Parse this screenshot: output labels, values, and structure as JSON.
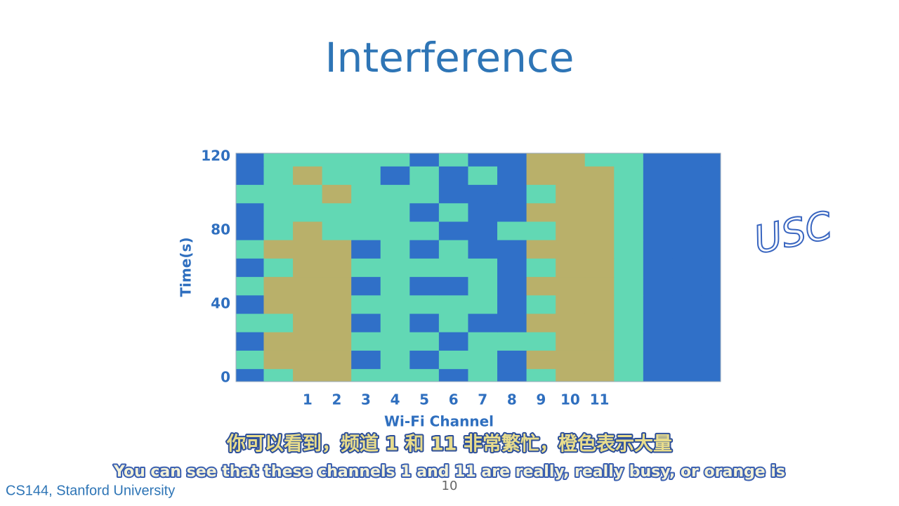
{
  "chart_data": {
    "type": "heatmap",
    "title": "Interference",
    "xlabel": "Wi-Fi Channel",
    "ylabel": "Time(s)",
    "x": [
      -1,
      0,
      1,
      2,
      3,
      4,
      5,
      6,
      7,
      8,
      9,
      10,
      11,
      12,
      13,
      14,
      15
    ],
    "y": [
      0,
      10,
      20,
      30,
      40,
      50,
      60,
      70,
      80,
      90,
      100,
      110,
      120
    ],
    "z": [
      [
        0,
        1,
        2,
        2,
        1,
        1,
        1,
        0,
        1,
        0,
        1,
        2,
        2,
        1,
        0,
        0,
        0
      ],
      [
        1,
        2,
        2,
        2,
        0,
        1,
        0,
        1,
        1,
        0,
        2,
        2,
        2,
        1,
        0,
        0,
        0
      ],
      [
        0,
        2,
        2,
        2,
        1,
        1,
        1,
        0,
        1,
        1,
        1,
        2,
        2,
        1,
        0,
        0,
        0
      ],
      [
        1,
        1,
        2,
        2,
        0,
        1,
        0,
        1,
        0,
        0,
        2,
        2,
        2,
        1,
        0,
        0,
        0
      ],
      [
        0,
        2,
        2,
        2,
        1,
        1,
        1,
        1,
        1,
        0,
        1,
        2,
        2,
        1,
        0,
        0,
        0
      ],
      [
        1,
        2,
        2,
        2,
        0,
        1,
        0,
        0,
        1,
        0,
        2,
        2,
        2,
        1,
        0,
        0,
        0
      ],
      [
        0,
        1,
        2,
        2,
        1,
        1,
        1,
        1,
        1,
        0,
        1,
        2,
        2,
        1,
        0,
        0,
        0
      ],
      [
        1,
        2,
        2,
        2,
        0,
        1,
        0,
        1,
        0,
        0,
        2,
        2,
        2,
        1,
        0,
        0,
        0
      ],
      [
        0,
        1,
        2,
        1,
        1,
        1,
        1,
        0,
        0,
        1,
        1,
        2,
        2,
        1,
        0,
        0,
        0
      ],
      [
        0,
        1,
        1,
        1,
        1,
        1,
        0,
        1,
        0,
        0,
        2,
        2,
        2,
        1,
        0,
        0,
        0
      ],
      [
        1,
        1,
        1,
        2,
        1,
        1,
        1,
        0,
        0,
        0,
        1,
        2,
        2,
        1,
        0,
        0,
        0
      ],
      [
        0,
        1,
        2,
        1,
        1,
        0,
        1,
        0,
        1,
        0,
        2,
        2,
        2,
        1,
        0,
        0,
        0
      ],
      [
        0,
        1,
        1,
        1,
        1,
        1,
        0,
        1,
        0,
        0,
        2,
        2,
        1,
        1,
        0,
        0,
        0
      ]
    ],
    "colors": [
      "#3070c8",
      "#62d8b4",
      "#b9b06a"
    ],
    "xlim": [
      -1.45,
      15.15
    ],
    "ylim": [
      -2,
      122
    ],
    "xticks": [
      1,
      2,
      3,
      4,
      5,
      6,
      7,
      8,
      9,
      10,
      11
    ],
    "yticks": [
      0,
      40,
      80,
      120
    ]
  },
  "annotation": "USC",
  "subtitle_zh": "你可以看到，频道 1 和 11 非常繁忙，橙色表示大量",
  "subtitle_en": "You can see that these channels 1 and 11 are really, really busy, or orange is",
  "footer": "CS144, Stanford University",
  "page_number": "10"
}
